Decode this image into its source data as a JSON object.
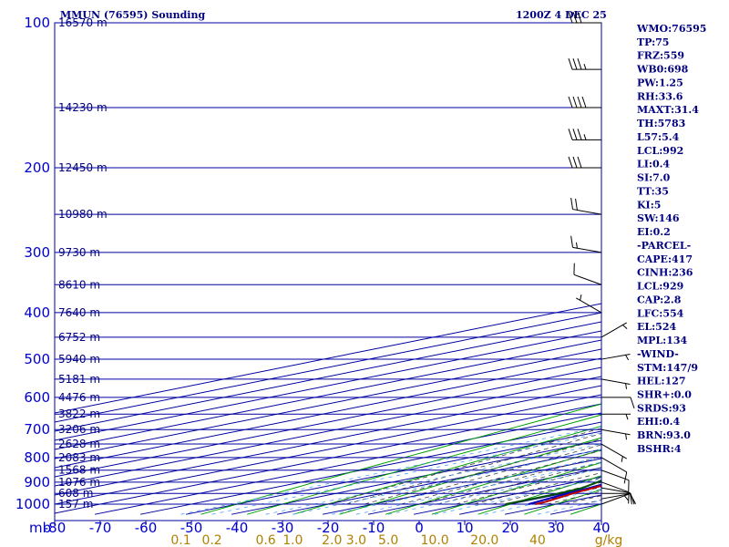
{
  "title_left": "MMUN (76595) Sounding",
  "title_right": "1200Z  4 DEC 25",
  "colors": {
    "grid": "#0000a0",
    "isotherm": "#0000a0",
    "dry_adiabat": "#00a000",
    "moist_adiabat": "#404040",
    "mixing_ratio": "#4aa0ff",
    "temperature": "#c00000",
    "dewpoint": "#005000",
    "parcel": "#0000c0",
    "wind_barb": "#000000"
  },
  "chart_data": {
    "type": "skew-t log-p sounding",
    "pressure_levels_mb": [
      100,
      200,
      300,
      400,
      500,
      600,
      700,
      800,
      900,
      1000
    ],
    "pressure_range_mb": [
      100,
      1050
    ],
    "temperature_range_c": [
      -80,
      40
    ],
    "temperature_ticks_c": [
      "-80",
      "-70",
      "-60",
      "-50",
      "-40",
      "-30",
      "-20",
      "-10",
      "0",
      "10",
      "20",
      "30",
      "40"
    ],
    "pressure_axis_label": "mb",
    "mixing_ratio_labels": [
      "0.1",
      "0.2",
      "0.6",
      "1.0",
      "2.0",
      "3.0",
      "5.0",
      "10.0",
      "20.0",
      "40"
    ],
    "mixing_ratio_unit": "g/kg",
    "heights": [
      {
        "p": 100,
        "label": "16570 m"
      },
      {
        "p": 150,
        "label": "14230 m"
      },
      {
        "p": 200,
        "label": "12450 m"
      },
      {
        "p": 250,
        "label": "10980 m"
      },
      {
        "p": 300,
        "label": "9730 m"
      },
      {
        "p": 350,
        "label": "8610 m"
      },
      {
        "p": 400,
        "label": "7640 m"
      },
      {
        "p": 450,
        "label": "6752 m"
      },
      {
        "p": 500,
        "label": "5940 m"
      },
      {
        "p": 550,
        "label": "5181 m"
      },
      {
        "p": 600,
        "label": "4476 m"
      },
      {
        "p": 650,
        "label": "3822 m"
      },
      {
        "p": 700,
        "label": "3206 m"
      },
      {
        "p": 750,
        "label": "2628 m"
      },
      {
        "p": 800,
        "label": "2083 m"
      },
      {
        "p": 850,
        "label": "1568 m"
      },
      {
        "p": 900,
        "label": "1076 m"
      },
      {
        "p": 950,
        "label": "608 m"
      },
      {
        "p": 1000,
        "label": "157 m"
      }
    ],
    "temperature_profile": [
      {
        "p": 1000,
        "t": 25.5
      },
      {
        "p": 990,
        "t": 25.3
      },
      {
        "p": 950,
        "t": 22.0
      },
      {
        "p": 925,
        "t": 20.4
      },
      {
        "p": 900,
        "t": 18.8
      },
      {
        "p": 850,
        "t": 16.5
      },
      {
        "p": 800,
        "t": 15.0
      },
      {
        "p": 775,
        "t": 13.2
      },
      {
        "p": 750,
        "t": 11.6
      },
      {
        "p": 700,
        "t": 9.7
      },
      {
        "p": 650,
        "t": 7.8
      },
      {
        "p": 600,
        "t": 4.0
      },
      {
        "p": 550,
        "t": -0.3
      },
      {
        "p": 500,
        "t": -5.0
      },
      {
        "p": 475,
        "t": -7.8
      },
      {
        "p": 450,
        "t": -10.8
      },
      {
        "p": 400,
        "t": -15.8
      },
      {
        "p": 350,
        "t": -22.0
      },
      {
        "p": 300,
        "t": -30.0
      },
      {
        "p": 275,
        "t": -34.0
      },
      {
        "p": 250,
        "t": -39.5
      },
      {
        "p": 200,
        "t": -50.5
      },
      {
        "p": 175,
        "t": -56.5
      },
      {
        "p": 150,
        "t": -63.5
      },
      {
        "p": 125,
        "t": -71.0
      },
      {
        "p": 110,
        "t": -76.5
      },
      {
        "p": 100,
        "t": -80.0
      }
    ],
    "dewpoint_profile": [
      {
        "p": 1000,
        "td": 19.0
      },
      {
        "p": 950,
        "td": 19.0
      },
      {
        "p": 925,
        "td": 18.0
      },
      {
        "p": 900,
        "td": 15.0
      },
      {
        "p": 850,
        "td": 8.0
      },
      {
        "p": 820,
        "td": -4.0
      },
      {
        "p": 800,
        "td": -3.5
      },
      {
        "p": 775,
        "td": -1.0
      },
      {
        "p": 750,
        "td": -5.0
      },
      {
        "p": 700,
        "td": -13.0
      },
      {
        "p": 675,
        "td": -15.5
      },
      {
        "p": 650,
        "td": -17.0
      },
      {
        "p": 600,
        "td": -20.0
      },
      {
        "p": 550,
        "td": -21.0
      },
      {
        "p": 500,
        "td": -26.5
      },
      {
        "p": 450,
        "td": -29.0
      },
      {
        "p": 425,
        "td": -33.5
      },
      {
        "p": 400,
        "td": -42.0
      },
      {
        "p": 350,
        "td": -46.0
      },
      {
        "p": 300,
        "td": -49.0
      },
      {
        "p": 290,
        "td": -50.5
      },
      {
        "p": 275,
        "td": -55.5
      },
      {
        "p": 250,
        "td": -55.0
      },
      {
        "p": 225,
        "td": -50.5
      },
      {
        "p": 215,
        "td": -55.0
      },
      {
        "p": 200,
        "td": -61.0
      },
      {
        "p": 175,
        "td": -68.0
      },
      {
        "p": 160,
        "td": -73.0
      },
      {
        "p": 150,
        "td": -77.5
      }
    ],
    "parcel_profile": [
      {
        "p": 1000,
        "t": 24.0
      },
      {
        "p": 950,
        "t": 20.8
      },
      {
        "p": 929,
        "t": 19.8
      },
      {
        "p": 900,
        "t": 18.0
      },
      {
        "p": 850,
        "t": 14.9
      },
      {
        "p": 800,
        "t": 11.9
      },
      {
        "p": 750,
        "t": 8.5
      },
      {
        "p": 700,
        "t": 4.8
      },
      {
        "p": 650,
        "t": 1.2
      },
      {
        "p": 600,
        "t": -2.3
      },
      {
        "p": 554,
        "t": -0.3
      },
      {
        "p": 500,
        "t": -5.0
      },
      {
        "p": 450,
        "t": -9.5
      },
      {
        "p": 400,
        "t": -14.5
      },
      {
        "p": 350,
        "t": -20.5
      },
      {
        "p": 300,
        "t": -27.5
      },
      {
        "p": 250,
        "t": -36.5
      },
      {
        "p": 200,
        "t": -48.0
      },
      {
        "p": 150,
        "t": -62.0
      },
      {
        "p": 125,
        "t": -70.5
      }
    ],
    "winds": [
      {
        "p": 1000,
        "dir": 70,
        "kt": 5
      },
      {
        "p": 975,
        "dir": 80,
        "kt": 10
      },
      {
        "p": 950,
        "dir": 90,
        "kt": 10
      },
      {
        "p": 925,
        "dir": 100,
        "kt": 10
      },
      {
        "p": 900,
        "dir": 110,
        "kt": 10
      },
      {
        "p": 850,
        "dir": 110,
        "kt": 10
      },
      {
        "p": 800,
        "dir": 120,
        "kt": 10
      },
      {
        "p": 750,
        "dir": 120,
        "kt": 5
      },
      {
        "p": 700,
        "dir": 100,
        "kt": 5
      },
      {
        "p": 650,
        "dir": 90,
        "kt": 5
      },
      {
        "p": 600,
        "dir": 90,
        "kt": 10
      },
      {
        "p": 550,
        "dir": 100,
        "kt": 5
      },
      {
        "p": 500,
        "dir": 80,
        "kt": 5
      },
      {
        "p": 450,
        "dir": 60,
        "kt": 5
      },
      {
        "p": 400,
        "dir": 300,
        "kt": 5
      },
      {
        "p": 350,
        "dir": 290,
        "kt": 10
      },
      {
        "p": 300,
        "dir": 280,
        "kt": 15
      },
      {
        "p": 250,
        "dir": 280,
        "kt": 20
      },
      {
        "p": 200,
        "dir": 270,
        "kt": 30
      },
      {
        "p": 175,
        "dir": 270,
        "kt": 35
      },
      {
        "p": 150,
        "dir": 270,
        "kt": 40
      },
      {
        "p": 125,
        "dir": 270,
        "kt": 35
      },
      {
        "p": 100,
        "dir": 270,
        "kt": 30
      }
    ]
  },
  "indices": [
    "WMO:76595",
    "TP:75",
    "FRZ:559",
    "WB0:698",
    "PW:1.25",
    "RH:33.6",
    "MAXT:31.4",
    "TH:5783",
    "L57:5.4",
    "LCL:992",
    "LI:0.4",
    "SI:7.0",
    "TT:35",
    "KI:5",
    "SW:146",
    "EI:0.2",
    "-PARCEL-",
    "CAPE:417",
    "CINH:236",
    "LCL:929",
    "CAP:2.8",
    "LFC:554",
    "EL:524",
    "MPL:134",
    "-WIND-",
    "STM:147/9",
    "HEL:127",
    "SHR+:0.0",
    "SRDS:93",
    "EHI:0.4",
    "BRN:93.0",
    "BSHR:4"
  ]
}
